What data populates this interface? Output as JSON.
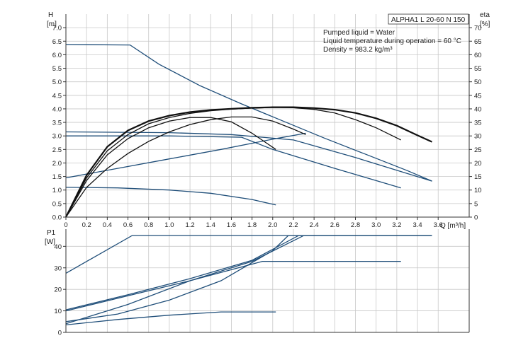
{
  "chart_data": [
    {
      "type": "line",
      "panel": "head",
      "title": "ALPHA1 L 20-60 N 150",
      "notes": [
        "Pumped liquid = Water",
        "Liquid temperature during operation = 60 °C",
        "Density = 983.2 kg/m³"
      ],
      "ylabel": "H",
      "yunit": "[m]",
      "y2label": "eta",
      "y2unit": "[%]",
      "xlabel": "Q [m³/h]",
      "xlim": [
        0,
        3.9
      ],
      "ylim": [
        0,
        7.5
      ],
      "y2lim": [
        0,
        75
      ],
      "xticks": [
        0,
        0.2,
        0.4,
        0.6,
        0.8,
        1.0,
        1.2,
        1.4,
        1.6,
        1.8,
        2.0,
        2.2,
        2.4,
        2.6,
        2.8,
        3.0,
        3.2,
        3.4,
        3.6
      ],
      "xtick_labels": [
        "0",
        "0.2",
        "0.4",
        "0.6",
        "0.8",
        "1.0",
        "1.2",
        "1.4",
        "1.6",
        "1.8",
        "2.0",
        "2.2",
        "2.4",
        "2.6",
        "2.8",
        "3.0",
        "3.2",
        "3.4",
        "3.6"
      ],
      "yticks": [
        0,
        0.5,
        1.0,
        1.5,
        2.0,
        2.5,
        3.0,
        3.5,
        4.0,
        4.5,
        5.0,
        5.5,
        6.0,
        6.5,
        7.0
      ],
      "ytick_labels": [
        "0.0",
        "0.5",
        "1.0",
        "1.5",
        "2.0",
        "2.5",
        "3.0",
        "3.5",
        "4.0",
        "4.5",
        "5.0",
        "5.5",
        "6.0",
        "6.5",
        "7.0"
      ],
      "y2ticks": [
        0,
        5,
        10,
        15,
        20,
        25,
        30,
        35,
        40,
        45,
        50,
        55,
        60,
        65,
        70
      ],
      "y2tick_labels": [
        "0",
        "5",
        "10",
        "15",
        "20",
        "25",
        "30",
        "35",
        "40",
        "45",
        "50",
        "55",
        "60",
        "65",
        "70"
      ],
      "grid": true,
      "series": [
        {
          "color": "#1f4e79",
          "x": [
            0,
            0.62,
            0.9,
            1.3,
            1.7,
            2.1,
            2.5,
            2.9,
            3.3,
            3.54
          ],
          "y": [
            6.38,
            6.36,
            5.65,
            4.85,
            4.18,
            3.55,
            2.92,
            2.32,
            1.72,
            1.33
          ]
        },
        {
          "color": "#1f4e79",
          "x": [
            0,
            1.0,
            1.6,
            2.2,
            2.8,
            3.54
          ],
          "y": [
            3.15,
            3.12,
            3.05,
            2.85,
            2.2,
            1.33
          ]
        },
        {
          "color": "#1f4e79",
          "x": [
            0,
            1.0,
            1.7,
            2.0,
            2.6,
            3.24
          ],
          "y": [
            3.0,
            3.0,
            2.95,
            2.5,
            1.8,
            1.08
          ]
        },
        {
          "color": "#1f4e79",
          "x": [
            0,
            0.5,
            1.0,
            1.5,
            2.0,
            2.32
          ],
          "y": [
            1.45,
            1.8,
            2.15,
            2.5,
            2.88,
            3.1
          ]
        },
        {
          "color": "#1f4e79",
          "x": [
            0,
            0.5,
            1.0,
            1.4,
            1.8,
            2.03
          ],
          "y": [
            1.1,
            1.08,
            1.0,
            0.88,
            0.65,
            0.45
          ]
        },
        {
          "color": "#111111",
          "x": [
            0,
            0.2,
            0.4,
            0.6,
            0.8,
            1.0,
            1.2,
            1.4,
            1.6,
            1.8,
            2.0,
            2.2,
            2.4,
            2.6,
            2.8,
            3.0,
            3.2,
            3.4,
            3.54
          ],
          "y": [
            0,
            1.55,
            2.6,
            3.2,
            3.55,
            3.75,
            3.88,
            3.96,
            4.0,
            4.04,
            4.06,
            4.06,
            4.03,
            3.97,
            3.85,
            3.65,
            3.38,
            3.02,
            2.78
          ]
        },
        {
          "color": "#111111",
          "x": [
            0,
            0.2,
            0.4,
            0.6,
            0.8,
            1.0,
            1.2,
            1.4,
            1.6,
            1.8,
            2.0,
            2.2,
            2.4,
            2.6,
            2.8,
            3.0,
            3.24
          ],
          "y": [
            0,
            1.45,
            2.45,
            3.05,
            3.45,
            3.68,
            3.83,
            3.93,
            3.99,
            4.03,
            4.05,
            4.04,
            3.98,
            3.85,
            3.6,
            3.3,
            2.85
          ]
        },
        {
          "color": "#111111",
          "x": [
            0,
            0.2,
            0.4,
            0.6,
            0.8,
            1.0,
            1.2,
            1.4,
            1.6,
            1.8,
            2.03
          ],
          "y": [
            0,
            1.35,
            2.3,
            2.9,
            3.3,
            3.55,
            3.68,
            3.68,
            3.52,
            3.1,
            2.5
          ]
        },
        {
          "color": "#111111",
          "x": [
            0,
            0.2,
            0.4,
            0.6,
            0.8,
            1.0,
            1.2,
            1.4,
            1.6,
            1.8,
            2.0,
            2.2,
            2.32
          ],
          "y": [
            0,
            1.1,
            1.8,
            2.35,
            2.8,
            3.15,
            3.42,
            3.6,
            3.7,
            3.7,
            3.55,
            3.25,
            3.05
          ]
        }
      ]
    },
    {
      "type": "line",
      "panel": "power",
      "ylabel": "P1",
      "yunit": "[W]",
      "xlim": [
        0,
        3.9
      ],
      "ylim": [
        0,
        48
      ],
      "yticks": [
        0,
        10,
        20,
        30,
        40
      ],
      "ytick_labels": [
        "0",
        "10",
        "20",
        "30",
        "40"
      ],
      "grid": true,
      "series": [
        {
          "color": "#1f4e79",
          "x": [
            0,
            0.64,
            3.54
          ],
          "y": [
            27.5,
            45,
            45
          ]
        },
        {
          "color": "#1f4e79",
          "x": [
            0,
            0.6,
            1.2,
            1.8,
            2.25,
            3.54
          ],
          "y": [
            10.5,
            17.5,
            25,
            33.5,
            45,
            45
          ]
        },
        {
          "color": "#1f4e79",
          "x": [
            0,
            0.6,
            1.2,
            1.8,
            2.3,
            3.54
          ],
          "y": [
            10,
            17,
            24,
            33,
            45,
            45
          ]
        },
        {
          "color": "#1f4e79",
          "x": [
            0,
            0.5,
            1.0,
            1.5,
            2.0,
            2.15,
            3.54
          ],
          "y": [
            5,
            8.5,
            15,
            24,
            38,
            45,
            45
          ]
        },
        {
          "color": "#1f4e79",
          "x": [
            0,
            0.6,
            1.2,
            1.9,
            3.24
          ],
          "y": [
            4,
            13,
            24,
            33,
            33
          ]
        },
        {
          "color": "#1f4e79",
          "x": [
            0,
            0.5,
            1.0,
            1.5,
            2.03
          ],
          "y": [
            3.5,
            6,
            8,
            9.5,
            9.5
          ]
        }
      ]
    }
  ]
}
